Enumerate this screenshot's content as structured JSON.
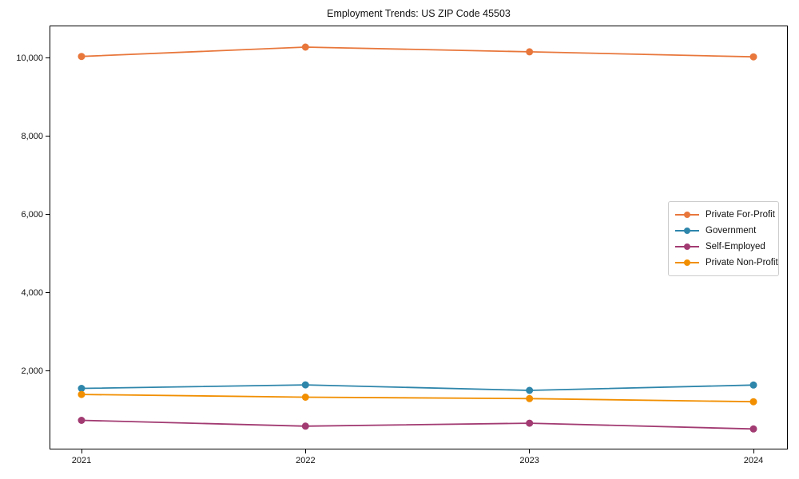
{
  "chart_data": {
    "type": "line",
    "title": "Employment Trends: US ZIP Code 45503",
    "xlabel": "",
    "ylabel": "",
    "x_labels": [
      "2021",
      "2022",
      "2023",
      "2024"
    ],
    "yticks": [
      {
        "value": 2000,
        "label": "2,000"
      },
      {
        "value": 4000,
        "label": "4,000"
      },
      {
        "value": 6000,
        "label": "6,000"
      },
      {
        "value": 8000,
        "label": "8,000"
      },
      {
        "value": 10000,
        "label": "10,000"
      }
    ],
    "ylim": [
      0,
      10830
    ],
    "grid": false,
    "legend_position": "center right",
    "marker": "circle",
    "series": [
      {
        "name": "Private For-Profit",
        "color": "#E8773C",
        "values": [
          10040,
          10280,
          10160,
          10030
        ]
      },
      {
        "name": "Government",
        "color": "#2E86AB",
        "values": [
          1560,
          1650,
          1510,
          1645
        ]
      },
      {
        "name": "Self-Employed",
        "color": "#A23B72",
        "values": [
          745,
          595,
          670,
          525
        ]
      },
      {
        "name": "Private Non-Profit",
        "color": "#F18F01",
        "values": [
          1405,
          1335,
          1300,
          1220
        ]
      }
    ]
  }
}
